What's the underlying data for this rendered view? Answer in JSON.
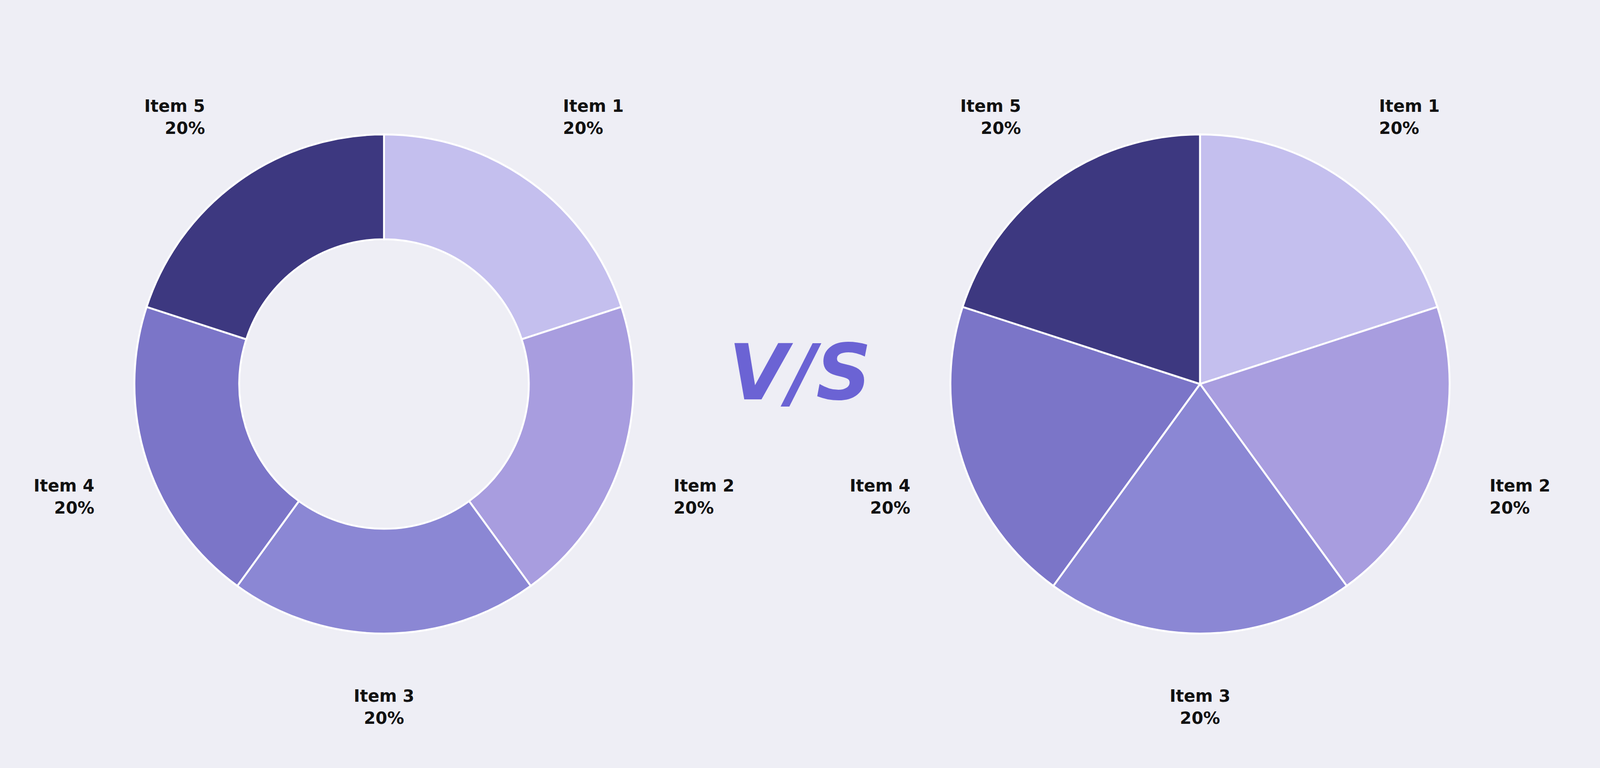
{
  "chart_data": [
    {
      "type": "donut",
      "categories": [
        "Item 1",
        "Item 2",
        "Item 3",
        "Item 4",
        "Item 5"
      ],
      "values": [
        20,
        20,
        20,
        20,
        20
      ],
      "value_labels": [
        "20%",
        "20%",
        "20%",
        "20%",
        "20%"
      ],
      "colors": [
        "#c4bfee",
        "#a89ddf",
        "#8b87d4",
        "#7b75c8",
        "#3d3880"
      ],
      "data_labels": true,
      "annotations": [
        {
          "text": "V/S",
          "color": "#6b63d4"
        }
      ]
    },
    {
      "type": "pie",
      "categories": [
        "Item 1",
        "Item 2",
        "Item 3",
        "Item 4",
        "Item 5"
      ],
      "values": [
        20,
        20,
        20,
        20,
        20
      ],
      "value_labels": [
        "20%",
        "20%",
        "20%",
        "20%",
        "20%"
      ],
      "colors": [
        "#c4bfee",
        "#a89ddf",
        "#8b87d4",
        "#7b75c8",
        "#3d3880"
      ],
      "data_labels": true
    }
  ]
}
